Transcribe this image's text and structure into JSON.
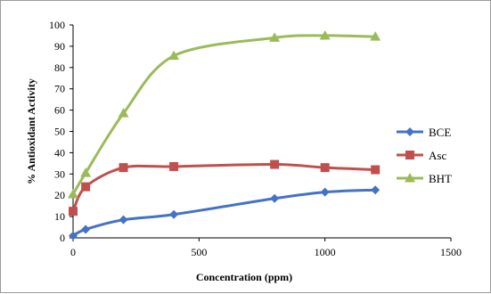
{
  "chart_data": {
    "type": "line",
    "title": "",
    "xlabel": "Concentration (ppm)",
    "ylabel": "% Antioxidant Activity",
    "xlim": [
      0,
      1500
    ],
    "ylim": [
      0,
      100
    ],
    "x_ticks": [
      0,
      500,
      1000,
      1500
    ],
    "y_ticks": [
      0,
      10,
      20,
      30,
      40,
      50,
      60,
      70,
      80,
      90,
      100
    ],
    "grid": false,
    "legend_position": "right",
    "smooth": true,
    "series": [
      {
        "name": "BCE",
        "marker": "diamond",
        "color": "#4472C4",
        "x": [
          0,
          50,
          200,
          400,
          800,
          1000,
          1200
        ],
        "y": [
          1.0,
          4.0,
          8.5,
          11.0,
          18.5,
          21.5,
          22.5
        ]
      },
      {
        "name": "Asc",
        "marker": "square",
        "color": "#C0504D",
        "x": [
          0,
          50,
          200,
          400,
          800,
          1000,
          1200
        ],
        "y": [
          12.5,
          24.0,
          33.0,
          33.5,
          34.5,
          33.0,
          32.0
        ]
      },
      {
        "name": "BHT",
        "marker": "triangle",
        "color": "#9BBB59",
        "x": [
          0,
          50,
          200,
          400,
          800,
          1000,
          1200
        ],
        "y": [
          20.5,
          30.5,
          58.5,
          85.5,
          94.0,
          95.0,
          94.5
        ]
      }
    ]
  }
}
